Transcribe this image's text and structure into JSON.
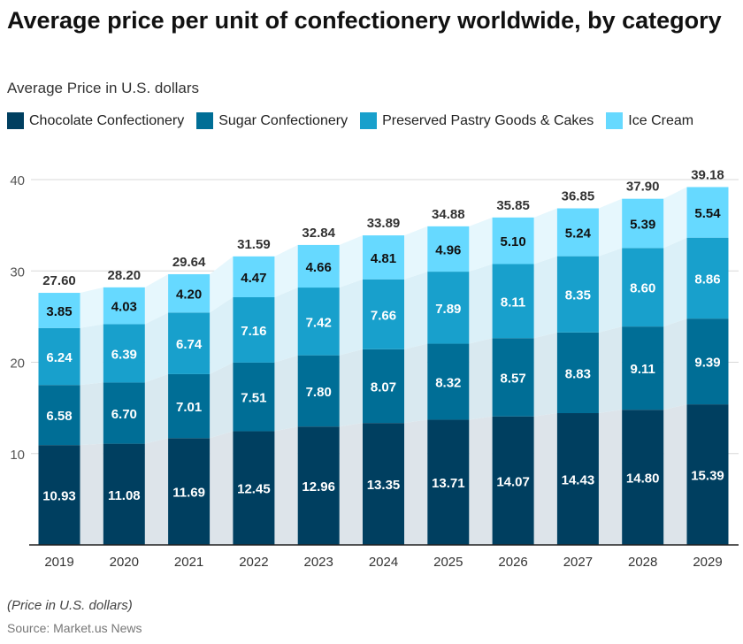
{
  "chart_data": {
    "type": "bar",
    "stacked": true,
    "title": "Average price per unit of confectionery worldwide, by category",
    "subtitle": "Average Price in U.S. dollars",
    "categories": [
      "2019",
      "2020",
      "2021",
      "2022",
      "2023",
      "2024",
      "2025",
      "2026",
      "2027",
      "2028",
      "2029"
    ],
    "series": [
      {
        "name": "Chocolate Confectionery",
        "color": "#003f60",
        "values": [
          10.93,
          11.08,
          11.69,
          12.45,
          12.96,
          13.35,
          13.71,
          14.07,
          14.43,
          14.8,
          15.39
        ]
      },
      {
        "name": "Sugar Confectionery",
        "color": "#006e96",
        "values": [
          6.58,
          6.7,
          7.01,
          7.51,
          7.8,
          8.07,
          8.32,
          8.57,
          8.83,
          9.11,
          9.39
        ]
      },
      {
        "name": "Preserved Pastry Goods & Cakes",
        "color": "#18a0cc",
        "values": [
          6.24,
          6.39,
          6.74,
          7.16,
          7.42,
          7.66,
          7.89,
          8.11,
          8.35,
          8.6,
          8.86
        ]
      },
      {
        "name": "Ice Cream",
        "color": "#66d9ff",
        "values": [
          3.85,
          4.03,
          4.2,
          4.47,
          4.66,
          4.81,
          4.96,
          5.1,
          5.24,
          5.39,
          5.54
        ]
      }
    ],
    "totals": [
      "27.60",
      "28.20",
      "29.64",
      "31.59",
      "32.84",
      "33.89",
      "34.88",
      "35.85",
      "36.85",
      "37.90",
      "39.18"
    ],
    "yticks": [
      10,
      20,
      30,
      40
    ],
    "ylim": [
      0,
      40
    ],
    "grid": true,
    "legend_position": "top-left"
  },
  "footer": {
    "note": "(Price in U.S. dollars)",
    "source": "Source: Market.us News"
  }
}
